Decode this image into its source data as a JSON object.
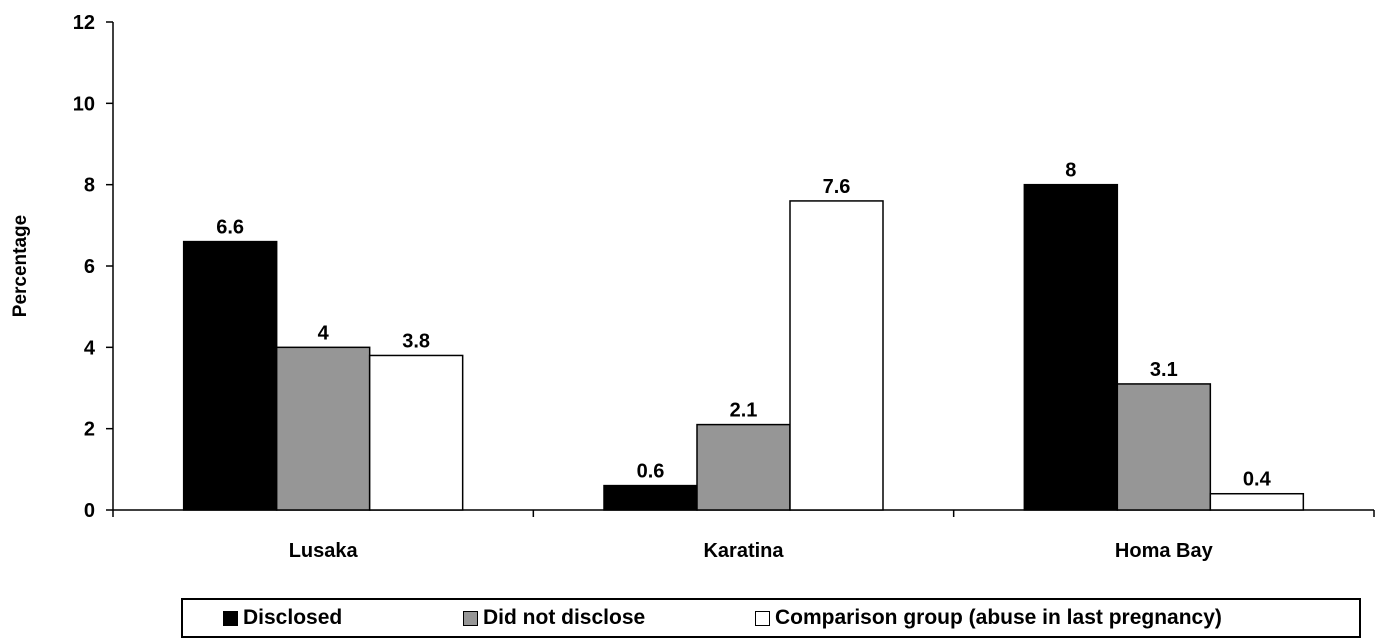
{
  "chart_data": {
    "type": "bar",
    "title": "",
    "xlabel": "",
    "ylabel": "Percentage",
    "ylim": [
      0,
      12
    ],
    "yticks": [
      0,
      2,
      4,
      6,
      8,
      10,
      12
    ],
    "ytick_labels": [
      "0",
      "2",
      "4",
      "6",
      "8",
      "10",
      "12"
    ],
    "categories": [
      "Lusaka",
      "Karatina",
      "Homa Bay"
    ],
    "grid": false,
    "legend_position": "bottom",
    "series": [
      {
        "name": "Disclosed",
        "values": [
          6.6,
          0.6,
          8
        ],
        "labels": [
          "6.6",
          "0.6",
          "8"
        ],
        "color": "#000000"
      },
      {
        "name": "Did not disclose",
        "values": [
          4,
          2.1,
          3.1
        ],
        "labels": [
          "4",
          "2.1",
          "3.1"
        ],
        "color": "#969696"
      },
      {
        "name": "Comparison group (abuse in last pregnancy)",
        "values": [
          3.8,
          7.6,
          0.4
        ],
        "labels": [
          "3.8",
          "7.6",
          "0.4"
        ],
        "color": "#ffffff"
      }
    ]
  }
}
